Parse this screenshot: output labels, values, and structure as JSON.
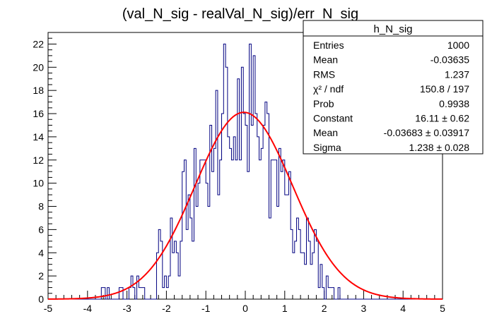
{
  "chart_data": {
    "type": "bar",
    "title": "(val_N_sig - realVal_N_sig)/err_N_sig",
    "xlim": [
      -5,
      5
    ],
    "ylim": [
      0,
      23
    ],
    "x_ticks": [
      -5,
      -4,
      -3,
      -2,
      -1,
      0,
      1,
      2,
      3,
      4,
      5
    ],
    "y_ticks": [
      0,
      2,
      4,
      6,
      8,
      10,
      12,
      14,
      16,
      18,
      20,
      22
    ],
    "bin_width": 0.05,
    "bins_start": -5,
    "counts": [
      0,
      0,
      0,
      0,
      0,
      0,
      0,
      0,
      0,
      0,
      0,
      0,
      0,
      0,
      0,
      0,
      0,
      0,
      0,
      0,
      0,
      0,
      0,
      0,
      0,
      0,
      0,
      1,
      1,
      0,
      1,
      0,
      0,
      0,
      0,
      0,
      1,
      1,
      0,
      0,
      0,
      1,
      2,
      1,
      0,
      2,
      1,
      1,
      1,
      0,
      0,
      0,
      0,
      0,
      0,
      4,
      6,
      5,
      1,
      2,
      1,
      2,
      7,
      4,
      5,
      4,
      2,
      5,
      11,
      12,
      6,
      9,
      7,
      5,
      13,
      8,
      10,
      12,
      12,
      12,
      10,
      8,
      15,
      11,
      13,
      18,
      9,
      12,
      16,
      22,
      20,
      14,
      13,
      12,
      14,
      12,
      19,
      12,
      20,
      16,
      15,
      11,
      22,
      15,
      21,
      16,
      14,
      12,
      13,
      15,
      17,
      16,
      7,
      12,
      12,
      12,
      8,
      13,
      11,
      12,
      9,
      9,
      11,
      6,
      4,
      5,
      7,
      6,
      4,
      4,
      3,
      7,
      5,
      3,
      4,
      6,
      5,
      1,
      3,
      1,
      0,
      2,
      1,
      1,
      1,
      0,
      0,
      1,
      0,
      0,
      0,
      0,
      0,
      0,
      0,
      0,
      0,
      0,
      0,
      0,
      0,
      0,
      0,
      0,
      0,
      0,
      0,
      0,
      0,
      0,
      0,
      0,
      0,
      0,
      0,
      0,
      0,
      0,
      0,
      0,
      0,
      0,
      0,
      0,
      0,
      0,
      0,
      0,
      0,
      0,
      0,
      0,
      0,
      0,
      0,
      0,
      0,
      0,
      0,
      0
    ],
    "fit": {
      "type": "gaus",
      "constant": 16.11,
      "mean": -0.03683,
      "sigma": 1.238
    },
    "histogram_color": "#000080",
    "fit_color": "#ff0000",
    "stats": {
      "name": "h_N_sig",
      "rows": [
        {
          "label": "Entries",
          "value": "1000"
        },
        {
          "label": "Mean",
          "value": "-0.03635"
        },
        {
          "label": "RMS",
          "value": "1.237"
        },
        {
          "label": "χ² / ndf",
          "value": "150.8 / 197"
        },
        {
          "label": "Prob",
          "value": "0.9938"
        },
        {
          "label": "Constant",
          "value": "16.11 ± 0.62"
        },
        {
          "label": "Mean",
          "value": "-0.03683  ± 0.03917"
        },
        {
          "label": "Sigma",
          "value": "1.238 ± 0.028"
        }
      ]
    }
  }
}
